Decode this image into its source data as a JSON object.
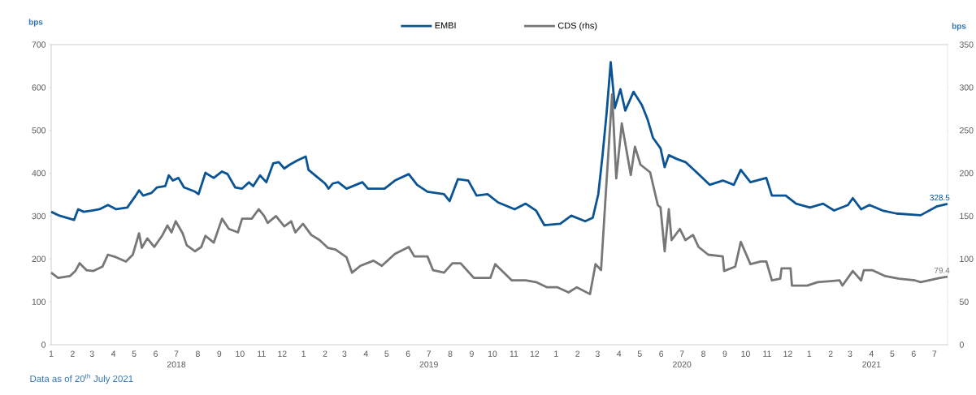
{
  "chart_data": {
    "type": "line",
    "xlim": [
      "2018-01-01",
      "2021-07-20"
    ],
    "xticks": [
      {
        "value": "2018-01-01",
        "label": "1"
      },
      {
        "value": "2018-02-01",
        "label": "2"
      },
      {
        "value": "2018-03-01",
        "label": "3"
      },
      {
        "value": "2018-04-01",
        "label": "4"
      },
      {
        "value": "2018-05-01",
        "label": "5"
      },
      {
        "value": "2018-06-01",
        "label": "6"
      },
      {
        "value": "2018-07-01",
        "label": "7"
      },
      {
        "value": "2018-08-01",
        "label": "8"
      },
      {
        "value": "2018-09-01",
        "label": "9"
      },
      {
        "value": "2018-10-01",
        "label": "10"
      },
      {
        "value": "2018-11-01",
        "label": "11"
      },
      {
        "value": "2018-12-01",
        "label": "12"
      },
      {
        "value": "2019-01-01",
        "label": "1"
      },
      {
        "value": "2019-02-01",
        "label": "2"
      },
      {
        "value": "2019-03-01",
        "label": "3"
      },
      {
        "value": "2019-04-01",
        "label": "4"
      },
      {
        "value": "2019-05-01",
        "label": "5"
      },
      {
        "value": "2019-06-01",
        "label": "6"
      },
      {
        "value": "2019-07-01",
        "label": "7"
      },
      {
        "value": "2019-08-01",
        "label": "8"
      },
      {
        "value": "2019-09-01",
        "label": "9"
      },
      {
        "value": "2019-10-01",
        "label": "10"
      },
      {
        "value": "2019-11-01",
        "label": "11"
      },
      {
        "value": "2019-12-01",
        "label": "12"
      },
      {
        "value": "2020-01-01",
        "label": "1"
      },
      {
        "value": "2020-02-01",
        "label": "2"
      },
      {
        "value": "2020-03-01",
        "label": "3"
      },
      {
        "value": "2020-04-01",
        "label": "4"
      },
      {
        "value": "2020-05-01",
        "label": "5"
      },
      {
        "value": "2020-06-01",
        "label": "6"
      },
      {
        "value": "2020-07-01",
        "label": "7"
      },
      {
        "value": "2020-08-01",
        "label": "8"
      },
      {
        "value": "2020-09-01",
        "label": "9"
      },
      {
        "value": "2020-10-01",
        "label": "10"
      },
      {
        "value": "2020-11-01",
        "label": "11"
      },
      {
        "value": "2020-12-01",
        "label": "12"
      },
      {
        "value": "2021-01-01",
        "label": "1"
      },
      {
        "value": "2021-02-01",
        "label": "2"
      },
      {
        "value": "2021-03-01",
        "label": "3"
      },
      {
        "value": "2021-04-01",
        "label": "4"
      },
      {
        "value": "2021-05-01",
        "label": "5"
      },
      {
        "value": "2021-06-01",
        "label": "6"
      },
      {
        "value": "2021-07-01",
        "label": "7"
      }
    ],
    "x2lim": [
      "2018-01-01",
      "2021-07-20"
    ],
    "x2ticks": [
      {
        "value": "2018-07-01",
        "label": "2018"
      },
      {
        "value": "2019-07-01",
        "label": "2019"
      },
      {
        "value": "2020-07-01",
        "label": "2020"
      },
      {
        "value": "2021-04-01",
        "label": "2021"
      }
    ],
    "ylim": [
      0,
      700
    ],
    "yticks": [
      0,
      100,
      200,
      300,
      400,
      500,
      600,
      700
    ],
    "y2lim": [
      0,
      350
    ],
    "y2ticks": [
      0,
      50,
      100,
      150,
      200,
      250,
      300,
      350
    ],
    "ylabel": "bps",
    "y2label": "bps",
    "legend": "top",
    "line_style": "solid",
    "annotations": [
      "Data as of 20$^{th}$ July 2021"
    ],
    "series": [
      {
        "name": "EMBI",
        "color": "#0a5495",
        "x": [
          "2018-01-01",
          "2018-01-13",
          "2018-01-24",
          "2018-02-03",
          "2018-02-09",
          "2018-02-17",
          "2018-03-01",
          "2018-03-12",
          "2018-03-24",
          "2018-04-05",
          "2018-04-21",
          "2018-05-02",
          "2018-05-08",
          "2018-05-14",
          "2018-05-26",
          "2018-06-03",
          "2018-06-15",
          "2018-06-20",
          "2018-06-26",
          "2018-07-04",
          "2018-07-12",
          "2018-07-28",
          "2018-08-02",
          "2018-08-12",
          "2018-08-24",
          "2018-09-05",
          "2018-09-13",
          "2018-09-24",
          "2018-10-04",
          "2018-10-14",
          "2018-10-20",
          "2018-10-30",
          "2018-11-08",
          "2018-11-18",
          "2018-11-26",
          "2018-12-04",
          "2018-12-12",
          "2018-12-23",
          "2019-01-04",
          "2019-01-08",
          "2019-01-20",
          "2019-02-01",
          "2019-02-06",
          "2019-02-12",
          "2019-02-20",
          "2019-03-04",
          "2019-03-27",
          "2019-04-04",
          "2019-04-28",
          "2019-05-13",
          "2019-06-02",
          "2019-06-14",
          "2019-06-29",
          "2019-07-23",
          "2019-07-31",
          "2019-08-12",
          "2019-08-27",
          "2019-09-08",
          "2019-09-24",
          "2019-10-09",
          "2019-11-02",
          "2019-11-18",
          "2019-12-03",
          "2019-12-15",
          "2020-01-07",
          "2020-01-23",
          "2020-02-12",
          "2020-02-23",
          "2020-03-02",
          "2020-03-08",
          "2020-03-14",
          "2020-03-20",
          "2020-03-26",
          "2020-04-03",
          "2020-04-10",
          "2020-04-22",
          "2020-05-04",
          "2020-05-12",
          "2020-05-20",
          "2020-05-31",
          "2020-06-06",
          "2020-06-12",
          "2020-06-24",
          "2020-07-06",
          "2020-07-21",
          "2020-08-10",
          "2020-08-29",
          "2020-09-14",
          "2020-09-24",
          "2020-10-08",
          "2020-10-31",
          "2020-11-08",
          "2020-11-28",
          "2020-12-13",
          "2021-01-02",
          "2021-01-21",
          "2021-02-06",
          "2021-02-26",
          "2021-03-05",
          "2021-03-17",
          "2021-03-29",
          "2021-04-17",
          "2021-05-07",
          "2021-06-11",
          "2021-07-05",
          "2021-07-20"
        ],
        "values": [
          310,
          301,
          296,
          291,
          316,
          310,
          313,
          316,
          326,
          316,
          320,
          345,
          360,
          348,
          354,
          367,
          370,
          395,
          383,
          389,
          367,
          357,
          351,
          401,
          389,
          404,
          398,
          367,
          364,
          379,
          370,
          395,
          379,
          423,
          426,
          411,
          420,
          430,
          439,
          408,
          392,
          376,
          364,
          376,
          379,
          364,
          379,
          364,
          364,
          383,
          398,
          373,
          357,
          351,
          335,
          386,
          383,
          348,
          351,
          332,
          316,
          329,
          313,
          279,
          282,
          301,
          288,
          296,
          351,
          439,
          540,
          659,
          552,
          596,
          546,
          590,
          559,
          527,
          483,
          458,
          414,
          442,
          433,
          426,
          404,
          373,
          383,
          373,
          408,
          379,
          389,
          348,
          348,
          329,
          320,
          329,
          313,
          326,
          342,
          316,
          326,
          313,
          306,
          302,
          323,
          328.5
        ],
        "value_labels": [
          null,
          null,
          null,
          null,
          null,
          null,
          null,
          null,
          null,
          null,
          null,
          null,
          null,
          null,
          null,
          null,
          null,
          null,
          null,
          null,
          null,
          null,
          null,
          null,
          null,
          null,
          null,
          null,
          null,
          null,
          null,
          null,
          null,
          null,
          null,
          null,
          null,
          null,
          null,
          null,
          null,
          null,
          null,
          null,
          null,
          null,
          null,
          null,
          null,
          null,
          null,
          null,
          null,
          null,
          null,
          null,
          null,
          null,
          null,
          null,
          null,
          null,
          null,
          null,
          null,
          null,
          null,
          null,
          null,
          null,
          null,
          null,
          null,
          null,
          null,
          null,
          null,
          null,
          null,
          null,
          null,
          null,
          null,
          null,
          null,
          null,
          null,
          null,
          null,
          null,
          null,
          null,
          null,
          null,
          null,
          null,
          null,
          null,
          null,
          null,
          null,
          null,
          null,
          null,
          null,
          "328.5"
        ]
      },
      {
        "name": "CDS (rhs)",
        "color": "#777777",
        "axis": "y2",
        "x": [
          "2018-01-01",
          "2018-01-11",
          "2018-01-28",
          "2018-02-05",
          "2018-02-11",
          "2018-02-21",
          "2018-03-03",
          "2018-03-16",
          "2018-03-24",
          "2018-04-05",
          "2018-04-19",
          "2018-04-29",
          "2018-05-08",
          "2018-05-12",
          "2018-05-20",
          "2018-05-30",
          "2018-06-11",
          "2018-06-18",
          "2018-06-24",
          "2018-06-30",
          "2018-07-10",
          "2018-07-16",
          "2018-07-28",
          "2018-08-06",
          "2018-08-12",
          "2018-08-24",
          "2018-09-05",
          "2018-09-15",
          "2018-09-28",
          "2018-10-04",
          "2018-10-18",
          "2018-10-28",
          "2018-11-05",
          "2018-11-10",
          "2018-11-22",
          "2018-12-04",
          "2018-12-14",
          "2018-12-20",
          "2018-12-31",
          "2019-01-12",
          "2019-01-24",
          "2019-02-05",
          "2019-02-16",
          "2019-03-04",
          "2019-03-12",
          "2019-03-24",
          "2019-04-12",
          "2019-04-24",
          "2019-05-13",
          "2019-06-02",
          "2019-06-10",
          "2019-06-29",
          "2019-07-07",
          "2019-07-23",
          "2019-08-04",
          "2019-08-16",
          "2019-09-04",
          "2019-09-28",
          "2019-10-05",
          "2019-10-29",
          "2019-11-18",
          "2019-12-03",
          "2019-12-19",
          "2020-01-03",
          "2020-01-19",
          "2020-01-31",
          "2020-02-19",
          "2020-02-27",
          "2020-03-06",
          "2020-03-14",
          "2020-03-22",
          "2020-03-28",
          "2020-04-05",
          "2020-04-18",
          "2020-04-24",
          "2020-05-02",
          "2020-05-16",
          "2020-05-27",
          "2020-05-31",
          "2020-06-06",
          "2020-06-12",
          "2020-06-16",
          "2020-06-28",
          "2020-07-06",
          "2020-07-17",
          "2020-07-25",
          "2020-08-08",
          "2020-08-29",
          "2020-08-31",
          "2020-09-16",
          "2020-09-24",
          "2020-10-08",
          "2020-10-23",
          "2020-10-31",
          "2020-11-08",
          "2020-11-20",
          "2020-11-22",
          "2020-12-05",
          "2020-12-07",
          "2020-12-29",
          "2021-01-13",
          "2021-02-14",
          "2021-02-18",
          "2021-03-05",
          "2021-03-17",
          "2021-03-21",
          "2021-04-02",
          "2021-04-21",
          "2021-05-11",
          "2021-06-03",
          "2021-06-11",
          "2021-07-09",
          "2021-07-20"
        ],
        "values": [
          84,
          78,
          80,
          86,
          95,
          87,
          86,
          91,
          105,
          102,
          97,
          105,
          130,
          113,
          124,
          114,
          128,
          139,
          131,
          144,
          130,
          116,
          109,
          114,
          127,
          119,
          147,
          135,
          131,
          147,
          147,
          158,
          150,
          142,
          150,
          138,
          144,
          131,
          141,
          128,
          122,
          113,
          111,
          102,
          84,
          92,
          98,
          92,
          106,
          114,
          103,
          103,
          87,
          84,
          95,
          95,
          78,
          78,
          94,
          75,
          75,
          73,
          67,
          67,
          61,
          67,
          59,
          94,
          87,
          191,
          292,
          194,
          258,
          198,
          231,
          210,
          201,
          163,
          160,
          109,
          158,
          122,
          135,
          122,
          128,
          114,
          105,
          103,
          86,
          91,
          120,
          94,
          97,
          97,
          75,
          77,
          89,
          89,
          69,
          69,
          73,
          75,
          69,
          86,
          75,
          87,
          87,
          80,
          77,
          75,
          73,
          78,
          79.4
        ],
        "value_labels": [
          null,
          null,
          null,
          null,
          null,
          null,
          null,
          null,
          null,
          null,
          null,
          null,
          null,
          null,
          null,
          null,
          null,
          null,
          null,
          null,
          null,
          null,
          null,
          null,
          null,
          null,
          null,
          null,
          null,
          null,
          null,
          null,
          null,
          null,
          null,
          null,
          null,
          null,
          null,
          null,
          null,
          null,
          null,
          null,
          null,
          null,
          null,
          null,
          null,
          null,
          null,
          null,
          null,
          null,
          null,
          null,
          null,
          null,
          null,
          null,
          null,
          null,
          null,
          null,
          null,
          null,
          null,
          null,
          null,
          null,
          null,
          null,
          null,
          null,
          null,
          null,
          null,
          null,
          null,
          null,
          null,
          null,
          null,
          null,
          null,
          null,
          null,
          null,
          null,
          null,
          null,
          null,
          null,
          null,
          null,
          null,
          null,
          null,
          null,
          null,
          null,
          null,
          null,
          null,
          null,
          null,
          null,
          null,
          null,
          null,
          null,
          null,
          "79.4"
        ]
      }
    ]
  }
}
